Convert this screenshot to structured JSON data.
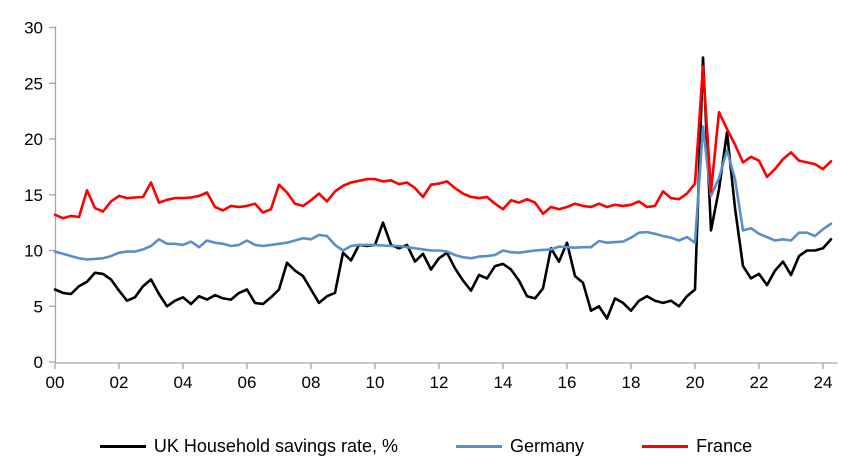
{
  "chart_data": {
    "type": "line",
    "title": "",
    "xlabel": "",
    "ylabel": "",
    "ylim": [
      0,
      30
    ],
    "xlim": [
      2000,
      2024.45
    ],
    "grid": false,
    "legend_position": "bottom",
    "axis_color": "#a6a6a6",
    "y_ticks": [
      0,
      5,
      10,
      15,
      20,
      25,
      30
    ],
    "x_tick_years": [
      2000,
      2002,
      2004,
      2006,
      2008,
      2010,
      2012,
      2014,
      2016,
      2018,
      2020,
      2022,
      2024
    ],
    "x_tick_labels": [
      "00",
      "02",
      "04",
      "06",
      "08",
      "10",
      "12",
      "14",
      "16",
      "18",
      "20",
      "22",
      "24"
    ],
    "x_start": 2000,
    "x_step": 0.25,
    "series": [
      {
        "name": "UK Household savings rate, %",
        "color": "#000000",
        "values": [
          6.5,
          6.2,
          6.1,
          6.8,
          7.2,
          8.0,
          7.9,
          7.4,
          6.4,
          5.5,
          5.8,
          6.8,
          7.4,
          6.1,
          5.0,
          5.5,
          5.8,
          5.2,
          5.9,
          5.6,
          6.0,
          5.7,
          5.6,
          6.2,
          6.5,
          5.3,
          5.2,
          5.8,
          6.5,
          8.9,
          8.2,
          7.7,
          6.5,
          5.3,
          5.9,
          6.2,
          9.8,
          9.1,
          10.5,
          10.4,
          10.5,
          12.5,
          10.5,
          10.2,
          10.5,
          9.0,
          9.7,
          8.3,
          9.3,
          9.8,
          8.4,
          7.3,
          6.4,
          7.8,
          7.5,
          8.6,
          8.8,
          8.3,
          7.3,
          5.9,
          5.7,
          6.6,
          10.2,
          9.0,
          10.7,
          7.7,
          7.1,
          4.6,
          5.0,
          3.9,
          5.7,
          5.3,
          4.6,
          5.5,
          5.9,
          5.5,
          5.3,
          5.5,
          5.0,
          5.9,
          6.5,
          27.3,
          11.8,
          15.5,
          20.6,
          13.8,
          8.6,
          7.5,
          7.9,
          6.9,
          8.2,
          9.0,
          7.8,
          9.5,
          10.0,
          10.0,
          10.2,
          11.0
        ]
      },
      {
        "name": "Germany",
        "color": "#5b8fc9",
        "values": [
          9.9,
          9.7,
          9.5,
          9.3,
          9.2,
          9.25,
          9.3,
          9.5,
          9.8,
          9.9,
          9.9,
          10.1,
          10.4,
          11.0,
          10.6,
          10.6,
          10.5,
          10.8,
          10.3,
          10.9,
          10.7,
          10.6,
          10.4,
          10.5,
          10.9,
          10.5,
          10.4,
          10.5,
          10.6,
          10.7,
          10.9,
          11.1,
          11.0,
          11.4,
          11.3,
          10.5,
          10.0,
          10.4,
          10.5,
          10.5,
          10.5,
          10.45,
          10.4,
          10.4,
          10.3,
          10.2,
          10.1,
          10.0,
          10.0,
          9.9,
          9.6,
          9.4,
          9.3,
          9.45,
          9.5,
          9.6,
          10.0,
          9.85,
          9.8,
          9.9,
          10.0,
          10.05,
          10.1,
          10.35,
          10.3,
          10.25,
          10.3,
          10.3,
          10.85,
          10.7,
          10.75,
          10.8,
          11.15,
          11.6,
          11.65,
          11.5,
          11.3,
          11.15,
          10.9,
          11.2,
          10.7,
          21.1,
          14.9,
          16.5,
          19.0,
          16.4,
          11.8,
          12.0,
          11.5,
          11.2,
          10.9,
          11.0,
          10.9,
          11.6,
          11.6,
          11.3,
          11.9,
          12.4
        ]
      },
      {
        "name": "France",
        "color": "#ff0000",
        "values": [
          13.2,
          12.9,
          13.1,
          13.0,
          15.4,
          13.8,
          13.5,
          14.4,
          14.9,
          14.7,
          14.75,
          14.8,
          16.1,
          14.3,
          14.55,
          14.7,
          14.7,
          14.75,
          14.9,
          15.2,
          13.9,
          13.6,
          14.0,
          13.9,
          14.0,
          14.2,
          13.4,
          13.7,
          15.9,
          15.2,
          14.2,
          14.0,
          14.5,
          15.1,
          14.4,
          15.3,
          15.8,
          16.1,
          16.25,
          16.4,
          16.4,
          16.2,
          16.3,
          15.95,
          16.1,
          15.6,
          14.8,
          15.9,
          16.0,
          16.2,
          15.6,
          15.1,
          14.8,
          14.7,
          14.8,
          14.2,
          13.7,
          14.5,
          14.3,
          14.6,
          14.3,
          13.3,
          13.9,
          13.7,
          13.9,
          14.2,
          14.0,
          13.9,
          14.2,
          13.9,
          14.1,
          14.0,
          14.1,
          14.4,
          13.9,
          14.0,
          15.3,
          14.7,
          14.6,
          15.1,
          16.0,
          26.5,
          15.3,
          22.4,
          20.9,
          19.5,
          17.9,
          18.4,
          18.05,
          16.6,
          17.3,
          18.2,
          18.8,
          18.05,
          17.9,
          17.75,
          17.3,
          18.0
        ]
      }
    ]
  },
  "legend": {
    "items": [
      {
        "label": "UK Household savings rate, %"
      },
      {
        "label": "Germany"
      },
      {
        "label": "France"
      }
    ]
  }
}
